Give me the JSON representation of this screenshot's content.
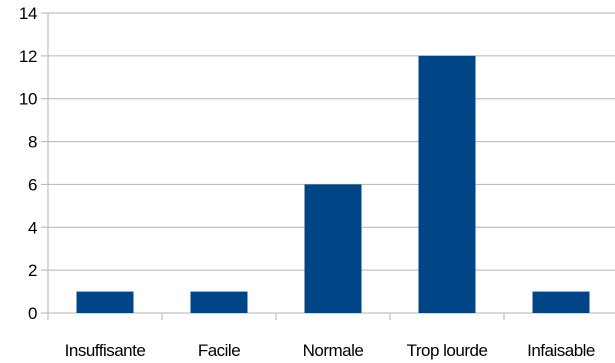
{
  "chart_data": {
    "type": "bar",
    "categories": [
      "Insuffisante",
      "Facile",
      "Normale",
      "Trop lourde",
      "Infaisable"
    ],
    "values": [
      1,
      1,
      6,
      12,
      1
    ],
    "yticks": [
      "0",
      "2",
      "4",
      "6",
      "8",
      "10",
      "12",
      "14"
    ],
    "ylim": [
      0,
      14
    ],
    "grid": true,
    "bar_color": "#004586",
    "grid_color": "#b3b3b3",
    "title": "",
    "xlabel": "",
    "ylabel": ""
  }
}
